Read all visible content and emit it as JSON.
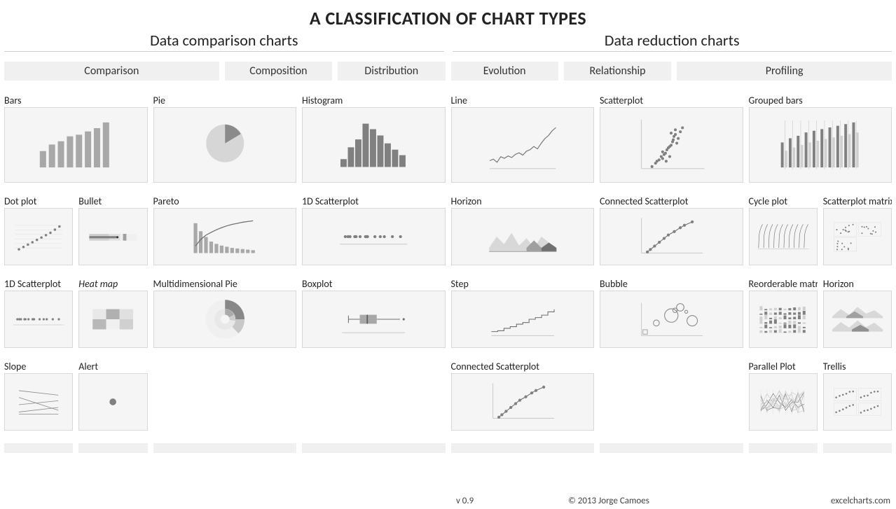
{
  "title": "A CLASSIFICATION OF CHART TYPES",
  "sections": {
    "left": "Data comparison charts",
    "right": "Data reduction charts"
  },
  "categories": {
    "comparison": "Comparison",
    "composition": "Composition",
    "distribution": "Distribution",
    "evolution": "Evolution",
    "relationship": "Relationship",
    "profiling": "Profiling"
  },
  "cells": {
    "bars": "Bars",
    "dotplot": "Dot plot",
    "bullet": "Bullet",
    "scatter1d_a": "1D Scatterplot",
    "heatmap": "Heat map",
    "slope": "Slope",
    "alert": "Alert",
    "pie": "Pie",
    "pareto": "Pareto",
    "multidim_pie": "Multidimensional Pie",
    "histogram": "Histogram",
    "scatter1d_b": "1D Scatterplot",
    "boxplot": "Boxplot",
    "line": "Line",
    "horizon_a": "Horizon",
    "step": "Step",
    "conn_scatter_a": "Connected Scatterplot",
    "scatterplot": "Scatterplot",
    "conn_scatter_b": "Connected Scatterplot",
    "bubble": "Bubble",
    "grouped_bars": "Grouped bars",
    "cycle": "Cycle plot",
    "scatter_matrix": "Scatterplot matrix",
    "reorder_matrix": "Reorderable matrix",
    "horizon_b": "Horizon",
    "parallel": "Parallel Plot",
    "trellis": "Trellis"
  },
  "footer": {
    "version": "v 0.9",
    "copyright": "© 2013 Jorge Camoes",
    "site": "excelcharts.com"
  },
  "style": {
    "thumb_bg": "#f5f5f5",
    "thumb_border": "#d8d8d8",
    "dark_fill": "#808080",
    "mid_fill": "#a8a8a8",
    "light_fill": "#d0d0d0",
    "vlight_fill": "#e8e8e8",
    "stroke": "#707070",
    "grid_stroke": "#cccccc",
    "bars_values": [
      20,
      28,
      32,
      38,
      40,
      44,
      48,
      55
    ],
    "histogram_values": [
      10,
      25,
      35,
      55,
      48,
      40,
      30,
      22,
      15
    ],
    "grouped_bars": {
      "a": [
        30,
        35,
        38,
        42,
        44,
        46,
        48,
        50,
        52,
        54
      ],
      "b": [
        20,
        24,
        27,
        30,
        32,
        34,
        36,
        38,
        40,
        42
      ]
    },
    "line_y": [
      50,
      48,
      52,
      45,
      47,
      44,
      46,
      42,
      40,
      43,
      38,
      36,
      32,
      35,
      28,
      22,
      18,
      12,
      8
    ],
    "pareto_bars": [
      52,
      38,
      28,
      20,
      16,
      13,
      11,
      9,
      8,
      7,
      6,
      5
    ],
    "pareto_line": [
      20,
      38,
      50,
      58,
      65,
      71,
      76,
      80,
      83,
      86,
      88,
      90
    ],
    "step_y": [
      70,
      68,
      62,
      58,
      52,
      48,
      40,
      36,
      30,
      22,
      16
    ],
    "boxplot": {
      "min": 10,
      "q1": 28,
      "med": 40,
      "q3": 55,
      "max": 92,
      "out": 98
    },
    "dotplot_y": [
      68,
      62,
      56,
      50,
      44,
      38,
      32,
      26,
      18,
      10
    ],
    "conn_scatter": [
      [
        10,
        70
      ],
      [
        15,
        65
      ],
      [
        22,
        58
      ],
      [
        30,
        50
      ],
      [
        38,
        42
      ],
      [
        45,
        35
      ],
      [
        55,
        28
      ],
      [
        65,
        20
      ],
      [
        72,
        15
      ],
      [
        85,
        8
      ]
    ],
    "scatter_pts": [
      [
        15,
        70
      ],
      [
        20,
        65
      ],
      [
        22,
        62
      ],
      [
        25,
        60
      ],
      [
        28,
        55
      ],
      [
        30,
        58
      ],
      [
        32,
        52
      ],
      [
        34,
        50
      ],
      [
        36,
        45
      ],
      [
        38,
        42
      ],
      [
        40,
        40
      ],
      [
        42,
        38
      ],
      [
        44,
        33
      ],
      [
        45,
        30
      ],
      [
        46,
        25
      ],
      [
        48,
        22
      ],
      [
        50,
        35
      ],
      [
        52,
        28
      ],
      [
        55,
        18
      ],
      [
        58,
        12
      ],
      [
        40,
        55
      ],
      [
        35,
        62
      ],
      [
        30,
        48
      ],
      [
        42,
        20
      ],
      [
        48,
        15
      ]
    ],
    "scatter1d_x": [
      8,
      12,
      15,
      22,
      24,
      30,
      38,
      40,
      41,
      52,
      60,
      66,
      78,
      90
    ]
  }
}
